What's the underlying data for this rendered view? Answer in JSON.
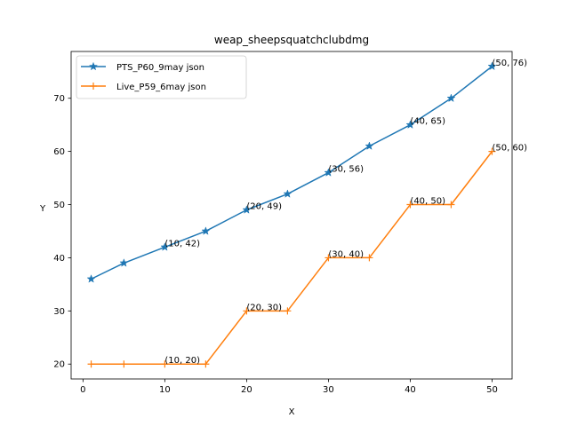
{
  "chart_data": {
    "type": "line",
    "title": "weap_sheepsquatchclubdmg",
    "xlabel": "X",
    "ylabel": "Y",
    "xlim": [
      -1.45,
      52.45
    ],
    "ylim": [
      17.2,
      78.8
    ],
    "x_ticks": [
      0,
      10,
      20,
      30,
      40,
      50
    ],
    "y_ticks": [
      20,
      30,
      40,
      50,
      60,
      70
    ],
    "grid": false,
    "legend_position": "top-left",
    "series": [
      {
        "name": "PTS_P60_9may json",
        "color": "#1f77b4",
        "marker": "star",
        "x": [
          1,
          5,
          10,
          15,
          20,
          25,
          30,
          35,
          40,
          45,
          50
        ],
        "y": [
          36,
          39,
          42,
          45,
          49,
          52,
          56,
          61,
          65,
          70,
          76
        ]
      },
      {
        "name": "Live_P59_6may json",
        "color": "#ff7f0e",
        "marker": "plus",
        "x": [
          1,
          5,
          10,
          15,
          20,
          25,
          30,
          35,
          40,
          45,
          50
        ],
        "y": [
          20,
          20,
          20,
          20,
          30,
          30,
          40,
          40,
          50,
          50,
          60
        ]
      }
    ],
    "annotations": [
      {
        "series": 0,
        "x": 10,
        "y": 42,
        "text": "(10, 42)"
      },
      {
        "series": 0,
        "x": 20,
        "y": 49,
        "text": "(20, 49)"
      },
      {
        "series": 0,
        "x": 30,
        "y": 56,
        "text": "(30, 56)"
      },
      {
        "series": 0,
        "x": 40,
        "y": 65,
        "text": "(40, 65)"
      },
      {
        "series": 0,
        "x": 50,
        "y": 76,
        "text": "(50, 76)"
      },
      {
        "series": 1,
        "x": 10,
        "y": 20,
        "text": "(10, 20)"
      },
      {
        "series": 1,
        "x": 20,
        "y": 30,
        "text": "(20, 30)"
      },
      {
        "series": 1,
        "x": 30,
        "y": 40,
        "text": "(30, 40)"
      },
      {
        "series": 1,
        "x": 40,
        "y": 50,
        "text": "(40, 50)"
      },
      {
        "series": 1,
        "x": 50,
        "y": 60,
        "text": "(50, 60)"
      }
    ]
  }
}
